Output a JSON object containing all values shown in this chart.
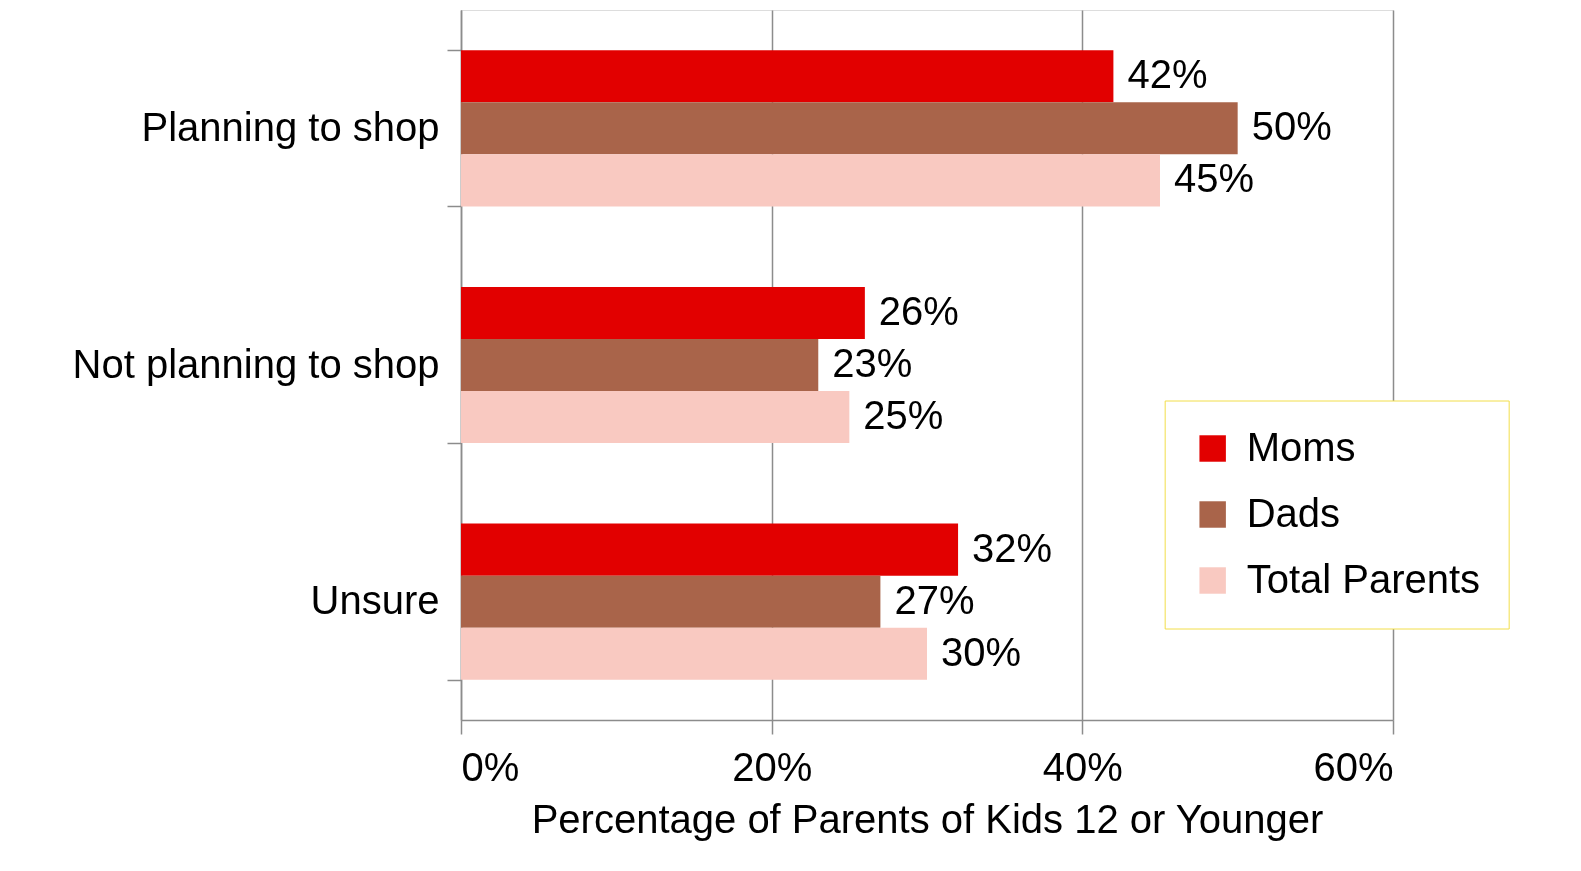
{
  "chart_data": {
    "type": "bar",
    "orientation": "horizontal",
    "categories": [
      "Planning to shop",
      "Not planning to shop",
      "Unsure"
    ],
    "series": [
      {
        "name": "Moms",
        "color": "#e20000",
        "values": [
          42,
          26,
          32
        ],
        "value_labels": [
          "42%",
          "26%",
          "32%"
        ]
      },
      {
        "name": "Dads",
        "color": "#a9644a",
        "values": [
          50,
          23,
          27
        ],
        "value_labels": [
          "50%",
          "23%",
          "27%"
        ]
      },
      {
        "name": "Total Parents",
        "color": "#f9c9c1",
        "values": [
          45,
          25,
          30
        ],
        "value_labels": [
          "45%",
          "25%",
          "30%"
        ]
      }
    ],
    "xlabel": "Percentage of Parents of Kids 12 or Younger",
    "xlim": [
      0,
      60
    ],
    "xticks": [
      {
        "value": 0,
        "label": "0%"
      },
      {
        "value": 20,
        "label": "20%"
      },
      {
        "value": 40,
        "label": "40%"
      },
      {
        "value": 60,
        "label": "60%"
      }
    ],
    "grid": "x",
    "legend": "right"
  }
}
